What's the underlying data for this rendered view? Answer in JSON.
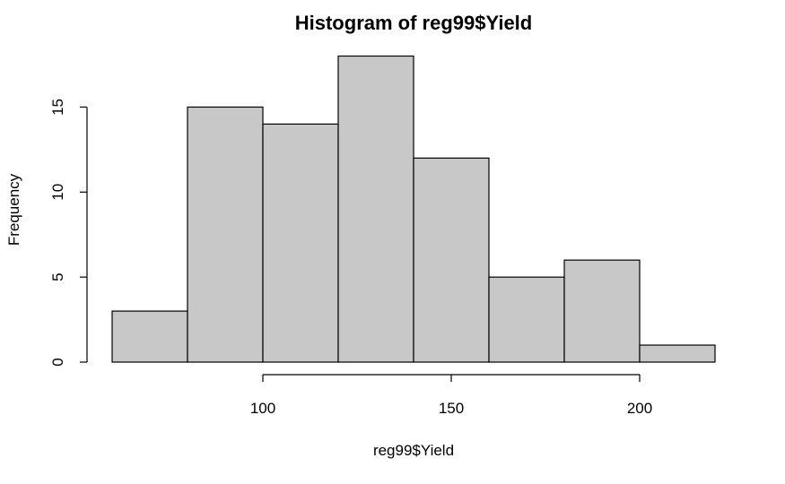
{
  "chart_data": {
    "type": "bar",
    "title": "Histogram of reg99$Yield",
    "xlabel": "reg99$Yield",
    "ylabel": "Frequency",
    "bins": [
      {
        "start": 60,
        "end": 80,
        "count": 3
      },
      {
        "start": 80,
        "end": 100,
        "count": 15
      },
      {
        "start": 100,
        "end": 120,
        "count": 14
      },
      {
        "start": 120,
        "end": 140,
        "count": 18
      },
      {
        "start": 140,
        "end": 160,
        "count": 12
      },
      {
        "start": 160,
        "end": 180,
        "count": 5
      },
      {
        "start": 180,
        "end": 200,
        "count": 6
      },
      {
        "start": 200,
        "end": 220,
        "count": 1
      }
    ],
    "xticks": [
      100,
      150,
      200
    ],
    "xtick_labels": [
      "100",
      "150",
      "200"
    ],
    "yticks": [
      0,
      5,
      10,
      15
    ],
    "ytick_labels": [
      "0",
      "5",
      "10",
      "15"
    ],
    "xlim": [
      60,
      220
    ],
    "ylim": [
      0,
      18
    ],
    "grid": false,
    "bar_color": "#c8c8c8",
    "edge_color": "#000000"
  }
}
